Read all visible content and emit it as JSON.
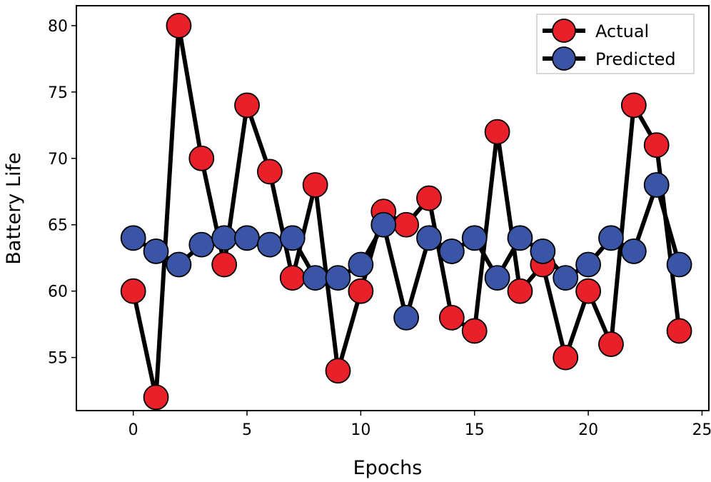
{
  "chart_data": {
    "type": "line",
    "title": "",
    "xlabel": "Epochs",
    "ylabel": "Battery Life",
    "x": [
      0,
      1,
      2,
      3,
      4,
      5,
      6,
      7,
      8,
      9,
      10,
      11,
      12,
      13,
      14,
      15,
      16,
      17,
      18,
      19,
      20,
      21,
      22,
      23,
      24
    ],
    "xlim": [
      -2.5,
      25.3
    ],
    "ylim": [
      51,
      81.5
    ],
    "xticks": [
      0,
      5,
      10,
      15,
      20,
      25
    ],
    "yticks": [
      55,
      60,
      65,
      70,
      75,
      80
    ],
    "xtick_labels": [
      "0",
      "5",
      "10",
      "15",
      "20",
      "25"
    ],
    "ytick_labels": [
      "55",
      "60",
      "65",
      "70",
      "75",
      "80"
    ],
    "grid": false,
    "legend_position": "top-right",
    "series": [
      {
        "name": "Actual",
        "color": "#e8202a",
        "values": [
          60,
          52,
          80,
          70,
          62,
          74,
          69,
          61,
          68,
          54,
          60,
          66,
          65,
          67,
          58,
          57,
          72,
          60,
          62,
          55,
          60,
          56,
          74,
          71,
          57
        ]
      },
      {
        "name": "Predicted",
        "color": "#3a55a5",
        "values": [
          64,
          63,
          62,
          63.5,
          64,
          64,
          63.5,
          64,
          61,
          61,
          62,
          65,
          58,
          64,
          63,
          64,
          61,
          64,
          63,
          61,
          62,
          64,
          63,
          68,
          62
        ]
      }
    ]
  }
}
